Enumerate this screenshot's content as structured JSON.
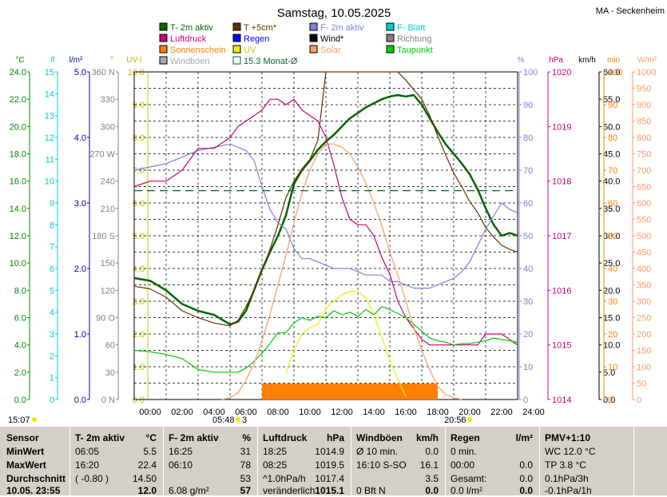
{
  "header": {
    "title": "Samstag, 10.05.2025",
    "station": "MA - Seckenheim"
  },
  "legend": [
    {
      "label": "T- 2m aktiv",
      "color": "#006600"
    },
    {
      "label": "T +5cm*",
      "color": "#663300"
    },
    {
      "label": "F- 2m aktiv",
      "color": "#8080e0"
    },
    {
      "label": "F- Blatt",
      "color": "#00cccc"
    },
    {
      "label": "Luftdruck",
      "color": "#cc0077"
    },
    {
      "label": "Regen",
      "color": "#0000ff"
    },
    {
      "label": "Wind*",
      "color": "#000000"
    },
    {
      "label": "Richtung",
      "color": "#808080"
    },
    {
      "label": "Sonnenschein",
      "color": "#ff8000"
    },
    {
      "label": "UV",
      "color": "#eeee00"
    },
    {
      "label": "Solar",
      "color": "#ff9966"
    },
    {
      "label": "Taupunkt",
      "color": "#00cc00"
    },
    {
      "label": "Windböen",
      "color": "#aaaaaa"
    },
    {
      "label": "15.3 Monat-Ø",
      "color": "#006633"
    }
  ],
  "axis_units": {
    "temp": "°C",
    "leaf": "lf",
    "rain": "l/m²",
    "dir": "°",
    "uv": "UV-I",
    "hum": "%",
    "press": "hPa",
    "wind": "km/h",
    "sun": "min",
    "solar": "W/m²"
  },
  "axes": {
    "temp": [
      "24.0",
      "22.0",
      "20.0",
      "18.0",
      "16.0",
      "14.0",
      "12.0",
      "10.0",
      "8.0",
      "6.0",
      "4.0",
      "2.0",
      "0.0"
    ],
    "leaf": [
      "15",
      "14",
      "13",
      "12",
      "11",
      "10",
      "9",
      "8",
      "7",
      "6",
      "5",
      "4",
      "3",
      "2",
      "1",
      "0"
    ],
    "rain": [
      "5.0",
      "4.0",
      "3.0",
      "2.0",
      "1.0",
      "0.0"
    ],
    "dir": [
      "360 N",
      "330",
      "300",
      "270 W",
      "240",
      "210",
      "180 S",
      "150",
      "120",
      "90 O",
      "60",
      "30",
      "0 N"
    ],
    "uv": [
      "10.0",
      "9.0",
      "8.0",
      "7.0",
      "6.0",
      "5.0",
      "4.0",
      "3.0",
      "2.0",
      "1.0",
      "0.0"
    ],
    "hum": [
      "100",
      "90",
      "80",
      "70",
      "60",
      "50",
      "40",
      "30",
      "20",
      "10",
      "0"
    ],
    "press": [
      "1020",
      "1019",
      "1018",
      "1017",
      "1016",
      "1015",
      "1014"
    ],
    "wind": [
      "60.0",
      "55.0",
      "50.0",
      "45.0",
      "40.0",
      "35.0",
      "30.0",
      "25.0",
      "20.0",
      "15.0",
      "10.0",
      "5.0",
      "0.0"
    ],
    "sun": [
      "100",
      "90",
      "80",
      "70",
      "60",
      "50",
      "40",
      "30",
      "20",
      "10",
      "0"
    ],
    "solar": [
      "1000",
      "950",
      "900",
      "850",
      "800",
      "750",
      "700",
      "650",
      "600",
      "550",
      "500",
      "450",
      "400",
      "350",
      "300",
      "250",
      "200",
      "150",
      "100",
      "50",
      "0"
    ],
    "time": [
      "00:00",
      "02:00",
      "04:00",
      "06:00",
      "08:00",
      "10:00",
      "12:00",
      "14:00",
      "16:00",
      "18:00",
      "20:00",
      "22:00",
      "24:00"
    ]
  },
  "sun_info": {
    "now": "15:07",
    "sunrise": "05:48",
    "sunrise_n": "3",
    "sunset": "20:56"
  },
  "chart_data": {
    "type": "line",
    "title": "Samstag, 10.05.2025",
    "x_unit": "hours",
    "xlim": [
      0,
      24
    ],
    "series": [
      {
        "name": "T- 2m aktiv",
        "unit": "°C",
        "ylim": [
          0,
          24
        ],
        "color": "#006600",
        "x": [
          0,
          1,
          2,
          3,
          4,
          5,
          6,
          6.5,
          7,
          7.5,
          8,
          8.5,
          9,
          9.5,
          10,
          10.5,
          11,
          11.5,
          12,
          12.5,
          13,
          13.5,
          14,
          14.5,
          15,
          15.5,
          16,
          16.5,
          17,
          17.5,
          18,
          18.5,
          19,
          19.5,
          20,
          20.5,
          21,
          21.5,
          22,
          22.5,
          23,
          23.5,
          24
        ],
        "y": [
          8.9,
          8.7,
          8.0,
          7.0,
          6.5,
          6.2,
          5.5,
          5.7,
          6.5,
          8.0,
          9.5,
          10.8,
          12.0,
          13.5,
          15.8,
          16.8,
          17.5,
          18.3,
          18.9,
          19.4,
          20.0,
          20.6,
          21.0,
          21.4,
          21.7,
          22.0,
          22.2,
          22.3,
          22.2,
          22.3,
          21.6,
          20.6,
          19.6,
          18.7,
          18.0,
          17.3,
          16.5,
          15.4,
          14.0,
          12.8,
          12.0,
          12.2,
          12.0
        ]
      },
      {
        "name": "T +5cm*",
        "unit": "°C",
        "ylim": [
          0,
          24
        ],
        "color": "#663300",
        "x": [
          0,
          1,
          2,
          3,
          4,
          5,
          6,
          6.5,
          7,
          7.5,
          8,
          8.5,
          9,
          9.5,
          10,
          10.5,
          11,
          11.5,
          12,
          12.5,
          13,
          13.5,
          14,
          14.5,
          15,
          15.5,
          16,
          16.5,
          17,
          17.5,
          18,
          18.5,
          19,
          19.5,
          20,
          20.5,
          21,
          21.5,
          22,
          22.5,
          23,
          23.5,
          24
        ],
        "y": [
          8.3,
          8.1,
          7.5,
          6.5,
          6.0,
          5.6,
          5.4,
          5.8,
          6.8,
          8.0,
          9.5,
          11.0,
          12.8,
          14.8,
          16.0,
          16.9,
          17.6,
          19.0,
          24.0,
          24.0,
          24.0,
          24.0,
          24.0,
          24.0,
          24.0,
          24.0,
          24.0,
          24.0,
          23.4,
          22.7,
          22.0,
          20.8,
          19.3,
          17.9,
          16.6,
          15.6,
          14.5,
          13.7,
          12.6,
          11.9,
          11.3,
          11.0,
          10.8
        ]
      },
      {
        "name": "F- 2m aktiv",
        "unit": "%",
        "ylim": [
          0,
          100
        ],
        "color": "#8080e0",
        "x": [
          0,
          1,
          2,
          3,
          4,
          5,
          6,
          6.5,
          7,
          7.5,
          8,
          8.5,
          9,
          9.5,
          10,
          10.5,
          11,
          11.5,
          12,
          12.5,
          13,
          13.5,
          14,
          14.5,
          15,
          15.5,
          16,
          16.5,
          17,
          17.5,
          18,
          18.5,
          19,
          19.5,
          20,
          20.5,
          21,
          21.5,
          22,
          22.5,
          23,
          23.5,
          24
        ],
        "y": [
          70,
          71,
          72,
          74,
          76,
          77,
          78,
          77,
          76,
          73,
          65,
          58,
          54,
          52,
          46,
          43,
          43,
          42,
          41,
          40,
          40,
          40,
          39,
          38,
          38,
          38,
          36,
          36,
          35,
          34,
          34,
          34,
          35,
          36,
          37,
          39,
          42,
          47,
          52,
          56,
          60,
          58,
          57
        ]
      },
      {
        "name": "Luftdruck",
        "unit": "hPa",
        "ylim": [
          1014,
          1020
        ],
        "color": "#cc0077",
        "x": [
          0,
          1,
          2,
          3,
          4,
          5,
          6,
          6.5,
          7,
          7.5,
          8,
          8.5,
          9,
          9.5,
          10,
          10.5,
          11,
          11.5,
          12,
          12.5,
          13,
          13.5,
          14,
          14.5,
          15,
          15.5,
          16,
          16.5,
          17,
          17.5,
          18,
          18.5,
          19,
          19.5,
          20,
          20.5,
          21,
          21.5,
          22,
          22.5,
          23,
          23.5,
          24
        ],
        "y": [
          1017.9,
          1018.0,
          1018.0,
          1018.2,
          1018.6,
          1018.6,
          1018.8,
          1019.0,
          1019.1,
          1019.2,
          1019.3,
          1019.5,
          1019.5,
          1019.4,
          1019.5,
          1019.3,
          1019.2,
          1019.1,
          1018.8,
          1018.3,
          1017.7,
          1017.3,
          1017.2,
          1017.2,
          1017.0,
          1016.6,
          1016.3,
          1015.8,
          1015.5,
          1015.3,
          1015.1,
          1015.0,
          1015.0,
          1015.0,
          1015.0,
          1015.0,
          1015.0,
          1015.0,
          1015.2,
          1015.2,
          1015.2,
          1015.1,
          1015.0
        ]
      },
      {
        "name": "Taupunkt",
        "unit": "°C",
        "ylim": [
          0,
          24
        ],
        "color": "#00cc00",
        "x": [
          0,
          1,
          2,
          3,
          4,
          5,
          6,
          6.5,
          7,
          7.5,
          8,
          8.5,
          9,
          9.5,
          10,
          10.5,
          11,
          11.5,
          12,
          12.5,
          13,
          13.5,
          14,
          14.5,
          15,
          15.5,
          16,
          16.5,
          17,
          17.5,
          18,
          18.5,
          19,
          19.5,
          20,
          20.5,
          21,
          21.5,
          22,
          22.5,
          23,
          23.5,
          24
        ],
        "y": [
          3.6,
          3.5,
          3.3,
          3.0,
          2.2,
          2.0,
          2.0,
          2.0,
          2.3,
          2.8,
          3.4,
          4.1,
          4.9,
          4.9,
          5.6,
          6.0,
          5.8,
          6.1,
          6.0,
          6.5,
          6.2,
          6.4,
          6.1,
          6.6,
          6.2,
          6.8,
          6.6,
          6.3,
          6.0,
          5.5,
          5.0,
          4.5,
          4.3,
          4.2,
          4.0,
          4.1,
          4.1,
          4.2,
          4.3,
          4.5,
          4.4,
          4.3,
          4.2
        ]
      },
      {
        "name": "Solar",
        "unit": "W/m²",
        "ylim": [
          0,
          1000
        ],
        "color": "#ff9966",
        "x": [
          5.5,
          6,
          6.5,
          7,
          7.5,
          8,
          8.5,
          9,
          9.5,
          10,
          10.5,
          11,
          11.5,
          12,
          12.5,
          13,
          13.5,
          14,
          14.5,
          15,
          15.5,
          16,
          16.5,
          17,
          17.5,
          18,
          18.5,
          19,
          19.5,
          20,
          20.5
        ],
        "y": [
          0,
          5,
          20,
          60,
          110,
          180,
          260,
          350,
          440,
          540,
          630,
          700,
          750,
          780,
          780,
          770,
          750,
          710,
          660,
          600,
          530,
          450,
          380,
          300,
          220,
          150,
          90,
          40,
          15,
          5,
          0
        ]
      },
      {
        "name": "UV",
        "unit": "UV-I",
        "ylim": [
          0,
          10
        ],
        "color": "#eeee00",
        "x": [
          9.5,
          10,
          10.5,
          11,
          11.5,
          12,
          12.5,
          13,
          13.5,
          14,
          14.5,
          15,
          15.5,
          16,
          16.5,
          17
        ],
        "y": [
          0.8,
          1.5,
          2.0,
          2.2,
          2.3,
          2.8,
          3.0,
          3.2,
          3.3,
          3.3,
          3.1,
          2.6,
          1.9,
          1.2,
          0.6,
          0.1
        ]
      },
      {
        "name": "15.3 Monat-Ø",
        "unit": "°C",
        "ylim": [
          0,
          24
        ],
        "color": "#006633",
        "x": [
          0,
          24
        ],
        "y": [
          15.3,
          15.3
        ]
      }
    ],
    "sunshine_bar": {
      "name": "Sonnenschein",
      "x_start": 8.0,
      "x_end": 19.0,
      "value_min": 5
    },
    "ylabel": "°C"
  },
  "stats": {
    "labels": {
      "title": "Sensor",
      "min": "MinWert",
      "max": "MaxWert",
      "avg": "Durchschnitt",
      "date": "10.05. 23:55"
    },
    "temp": {
      "title": "T- 2m aktiv",
      "unit": "°C",
      "rows": [
        [
          "06:05",
          "5.5"
        ],
        [
          "16:20",
          "22.4"
        ],
        [
          "( -0.80 )",
          "14.50"
        ],
        [
          "",
          "12.0"
        ]
      ]
    },
    "hum": {
      "title": "F- 2m aktiv",
      "unit": "%",
      "rows": [
        [
          "16:25",
          "31"
        ],
        [
          "06:10",
          "78"
        ],
        [
          "",
          "53"
        ],
        [
          "6.08 g/m²",
          "57"
        ]
      ]
    },
    "press": {
      "title": "Luftdruck",
      "unit": "hPa",
      "rows": [
        [
          "18:25",
          "1014.9"
        ],
        [
          "08:25",
          "1019.5"
        ],
        [
          "^1.0hPa/h",
          "1017.4"
        ],
        [
          "veränderlich",
          "1015.1"
        ]
      ]
    },
    "wind": {
      "title": "Windböen",
      "unit": "km/h",
      "rows": [
        [
          "Ø 10 min.",
          "0.0"
        ],
        [
          "16:10   S-SO",
          "16.1"
        ],
        [
          "",
          "3.5"
        ],
        [
          "0 Bft N",
          "0.0"
        ]
      ]
    },
    "rain": {
      "title": "Regen",
      "unit": "l/m²",
      "rows": [
        [
          "0 min.",
          ""
        ],
        [
          "00:00",
          "0.0"
        ],
        [
          "Gesamt:",
          "0.0"
        ],
        [
          "0.0 l/m²",
          "0.0"
        ]
      ]
    },
    "pmv": {
      "title": "PMV+1:10",
      "rows": [
        "WC 12.0 °C",
        "TP 3.8 °C",
        "0.1hPa/3h",
        "-0.1hPa/1h"
      ]
    }
  }
}
